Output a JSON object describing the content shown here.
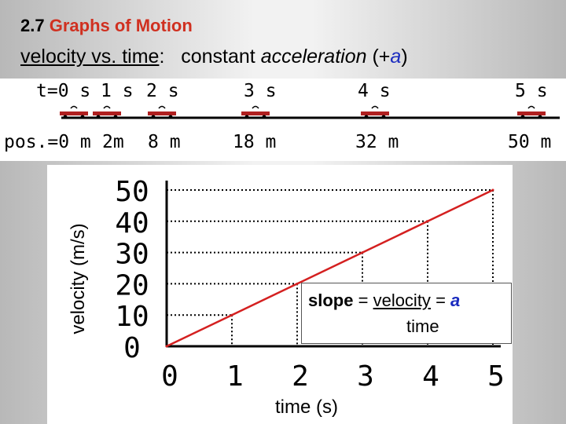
{
  "header": {
    "section_number": "2.7",
    "section_title": "Graphs of Motion"
  },
  "subtitle": {
    "part1": "velocity vs. time",
    "colon": ":",
    "part2": "constant",
    "part3": "acceleration",
    "part4_open": "(+",
    "part4_a": "a",
    "part4_close": ")"
  },
  "diagram": {
    "time_labels": [
      "t=0 s",
      "1 s",
      "2 s",
      "3 s",
      "4 s",
      "5 s"
    ],
    "position_labels": [
      "pos.=0 m",
      "2m",
      "8 m",
      "18 m",
      "32 m",
      "50 m"
    ]
  },
  "chart_data": {
    "type": "line",
    "x": [
      0,
      1,
      2,
      3,
      4,
      5
    ],
    "series": [
      {
        "name": "velocity",
        "values": [
          0,
          10,
          20,
          30,
          40,
          50
        ],
        "color": "#d42020"
      }
    ],
    "xlabel": "time (s)",
    "ylabel": "velocity (m/s)",
    "xlim": [
      0,
      5
    ],
    "ylim": [
      0,
      50
    ],
    "x_ticks": [
      "0",
      "1",
      "2",
      "3",
      "4",
      "5"
    ],
    "y_ticks": [
      "0",
      "10",
      "20",
      "30",
      "40",
      "50"
    ],
    "annotation": {
      "slope_word": "slope",
      "equals1": "=",
      "velocity_word": "velocity",
      "equals2": "=",
      "a_symbol": "a",
      "time_word": "time"
    }
  },
  "colors": {
    "accent_red": "#d03020",
    "accent_blue": "#1a2bbf",
    "line_red": "#d42020"
  }
}
